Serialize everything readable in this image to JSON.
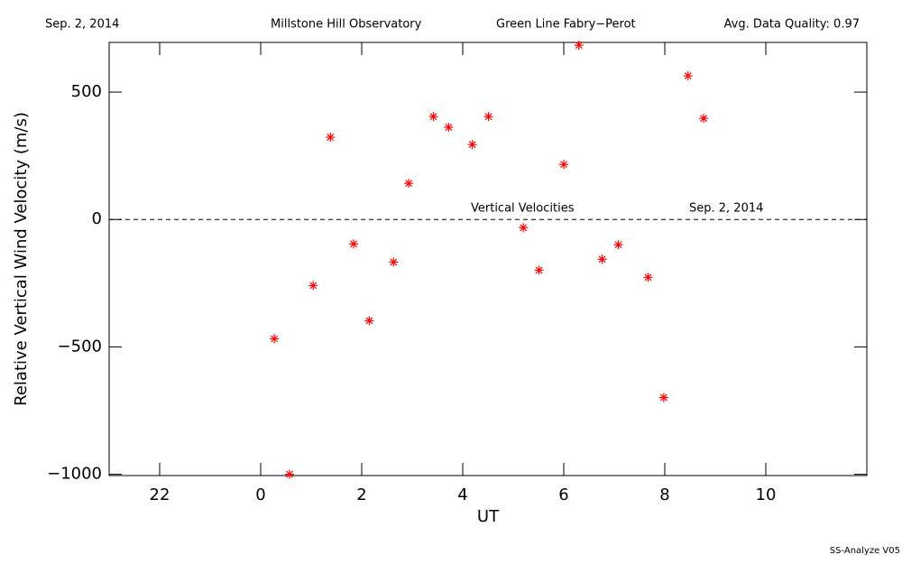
{
  "chart_data": {
    "type": "scatter",
    "header": [
      "Sep. 2, 2014",
      "Millstone Hill Observatory",
      "Green Line Fabry−Perot",
      "Avg. Data Quality: 0.97"
    ],
    "xlabel": "UT",
    "ylabel": "Relative Vertical Wind Velocity (m/s)",
    "annotations": [
      "Vertical Velocities",
      "Sep. 2, 2014"
    ],
    "footer": "SS-Analyze V05",
    "xlim": [
      -3,
      12
    ],
    "ylim": [
      -1005,
      695
    ],
    "xticks": [
      {
        "value": -2,
        "label": "22"
      },
      0,
      2,
      4,
      6,
      8,
      10
    ],
    "yticks": [
      {
        "value": -1000,
        "label": "−1000"
      },
      {
        "value": -500,
        "label": "−500"
      },
      0,
      500
    ],
    "reference_line": 0,
    "series": [
      {
        "color": "#ff0000",
        "x": [
          0.27,
          0.57,
          1.04,
          1.38,
          1.84,
          2.15,
          2.63,
          2.93,
          3.42,
          3.72,
          4.19,
          4.51,
          5.2,
          5.51,
          6.0,
          6.3,
          6.76,
          7.08,
          7.67,
          7.98,
          8.46,
          8.77
        ],
        "values": [
          -468,
          -1000,
          -259,
          323,
          -96,
          -397,
          -167,
          142,
          404,
          362,
          294,
          404,
          -32,
          -199,
          216,
          684,
          -156,
          -99,
          -227,
          -699,
          564,
          397
        ]
      }
    ]
  }
}
